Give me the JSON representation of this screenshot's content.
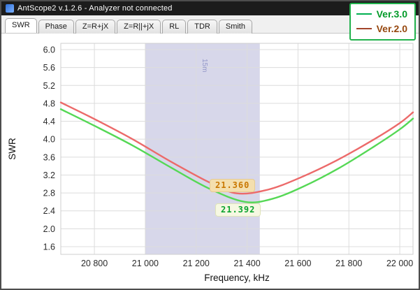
{
  "window": {
    "title": "AntScope2 v.1.2.6 - Analyzer not connected"
  },
  "tabs": {
    "items": [
      {
        "label": "SWR",
        "active": true
      },
      {
        "label": "Phase",
        "active": false
      },
      {
        "label": "Z=R+jX",
        "active": false
      },
      {
        "label": "Z=R||+jX",
        "active": false
      },
      {
        "label": "RL",
        "active": false
      },
      {
        "label": "TDR",
        "active": false
      },
      {
        "label": "Smith",
        "active": false
      }
    ]
  },
  "legend": {
    "border_color": "#21b14c",
    "items": [
      {
        "label": "Ver.3.0",
        "line_color": "#00b050",
        "text_color": "#009a28"
      },
      {
        "label": "Ver.2.0",
        "line_color": "#a2442a",
        "text_color": "#96470e"
      }
    ]
  },
  "chart_data": {
    "type": "line",
    "title": "",
    "xlabel": "Frequency, kHz",
    "ylabel": "SWR",
    "xlim": [
      20668,
      22052
    ],
    "ylim": [
      1.6,
      6.0
    ],
    "grid": true,
    "legend_position": "top-right",
    "x_ticks": {
      "values": [
        20800,
        21000,
        21200,
        21400,
        21600,
        21800,
        22000
      ],
      "labels": [
        "20 800",
        "21 000",
        "21 200",
        "21 400",
        "21 600",
        "21 800",
        "22 000"
      ]
    },
    "y_ticks": {
      "values": [
        1.6,
        2.0,
        2.4,
        2.8,
        3.2,
        3.6,
        4.0,
        4.4,
        4.8,
        5.2,
        5.6,
        6.0
      ],
      "labels": [
        "1.6",
        "2.0",
        "2.4",
        "2.8",
        "3.2",
        "3.6",
        "4.0",
        "4.4",
        "4.8",
        "5.2",
        "5.6",
        "6.0"
      ]
    },
    "band": {
      "from": 21000,
      "to": 21450,
      "label": "15m",
      "label_at": 21225,
      "color": "#d7d7ea",
      "label_color": "#9196c8"
    },
    "series": [
      {
        "name": "Ver.2.0",
        "color": "#ec6a6a",
        "min_swr_at_khz": 21360,
        "points": [
          [
            20668,
            4.82
          ],
          [
            20800,
            4.45
          ],
          [
            20950,
            4.0
          ],
          [
            21100,
            3.5
          ],
          [
            21250,
            3.04
          ],
          [
            21360,
            2.79
          ],
          [
            21480,
            2.87
          ],
          [
            21600,
            3.12
          ],
          [
            21750,
            3.52
          ],
          [
            21900,
            4.0
          ],
          [
            22000,
            4.36
          ],
          [
            22052,
            4.6
          ]
        ]
      },
      {
        "name": "Ver.3.0",
        "color": "#55d855",
        "min_swr_at_khz": 21392,
        "points": [
          [
            20668,
            4.67
          ],
          [
            20800,
            4.3
          ],
          [
            20950,
            3.86
          ],
          [
            21100,
            3.37
          ],
          [
            21250,
            2.9
          ],
          [
            21392,
            2.6
          ],
          [
            21500,
            2.67
          ],
          [
            21620,
            2.94
          ],
          [
            21760,
            3.35
          ],
          [
            21900,
            3.84
          ],
          [
            22000,
            4.22
          ],
          [
            22052,
            4.46
          ]
        ]
      }
    ],
    "annotations": [
      {
        "text": "21.360",
        "series": "Ver.2.0",
        "text_color": "#c97700",
        "bg_color": "#f4dfae",
        "border_color": "#e6cb92"
      },
      {
        "text": "21.392",
        "series": "Ver.3.0",
        "text_color": "#0aa32e",
        "bg_color": "#f6f8e2",
        "border_color": "#dfe4b8"
      }
    ]
  }
}
